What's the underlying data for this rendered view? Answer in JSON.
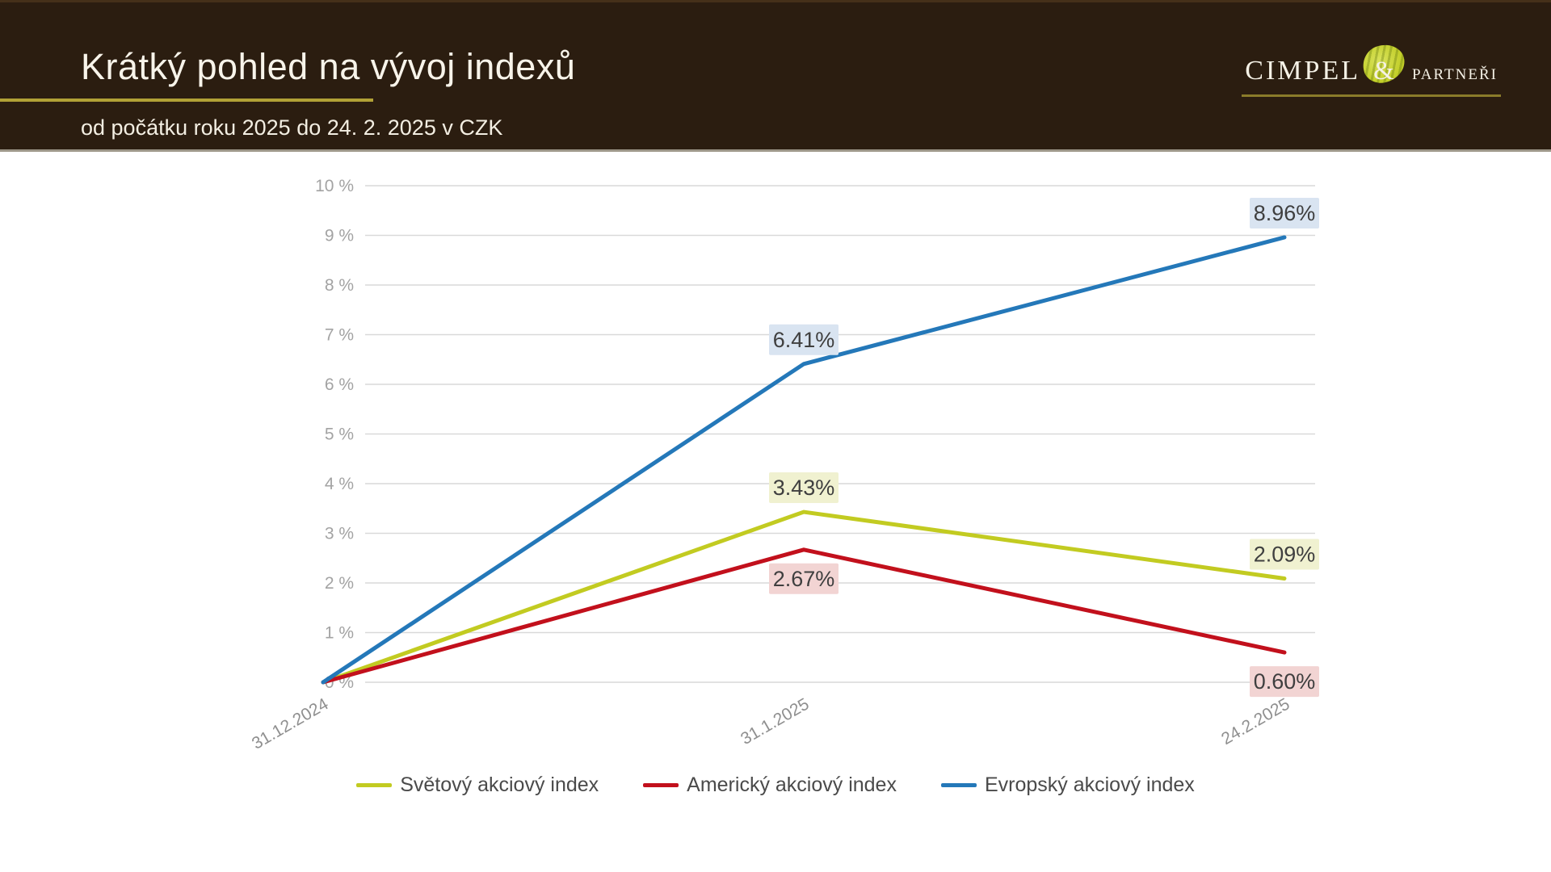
{
  "header": {
    "title": "Krátký pohled na vývoj indexů",
    "subtitle": "od počátku roku 2025 do 24. 2. 2025 v CZK",
    "logo": {
      "name": "Cimpel",
      "amp": "&",
      "suffix": "partneři"
    },
    "colors": {
      "background": "#2b1d10",
      "accent_gold": "#b1a136",
      "text": "#f8f4ea"
    }
  },
  "chart_data": {
    "type": "line",
    "title": "",
    "xlabel": "",
    "ylabel": "",
    "categories": [
      "31.12.2024",
      "31.1.2025",
      "24.2.2025"
    ],
    "series": [
      {
        "name": "Světový akciový index",
        "color": "#c2cb21",
        "label_bg": "#f0f1d0",
        "values": [
          0,
          3.43,
          2.09
        ],
        "labels": [
          "",
          "3.43%",
          "2.09%"
        ],
        "label_side": [
          "",
          "above",
          "above"
        ]
      },
      {
        "name": "Americký akciový index",
        "color": "#c2101c",
        "label_bg": "#f2d4d3",
        "values": [
          0,
          2.67,
          0.6
        ],
        "labels": [
          "",
          "2.67%",
          "0.60%"
        ],
        "label_side": [
          "",
          "below",
          "below"
        ]
      },
      {
        "name": "Evropský akciový index",
        "color": "#2478b9",
        "label_bg": "#d9e4f1",
        "values": [
          0,
          6.41,
          8.96
        ],
        "labels": [
          "",
          "6.41%",
          "8.96%"
        ],
        "label_side": [
          "",
          "above",
          "above"
        ]
      }
    ],
    "y_ticks": [
      "0 %",
      "1 %",
      "2 %",
      "3 %",
      "4 %",
      "5 %",
      "6 %",
      "7 %",
      "8 %",
      "9 %",
      "10 %"
    ],
    "ylim": [
      0,
      10
    ],
    "grid": true,
    "legend_position": "bottom",
    "style": {
      "gridline_color": "#d9d9d9",
      "tick_label_color": "#a3a3a3",
      "x_label_color": "#8f8f8f",
      "data_label_color": "#3f3f3f"
    }
  }
}
